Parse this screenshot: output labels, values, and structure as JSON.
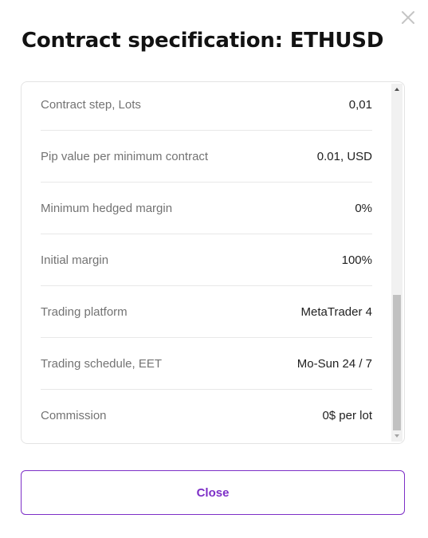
{
  "modal": {
    "title": "Contract specification: ETHUSD",
    "close_icon": "close-icon",
    "close_button_label": "Close",
    "accent_color": "#7d2fc7"
  },
  "spec": {
    "rows": [
      {
        "label": "Contract step, Lots",
        "value": "0,01"
      },
      {
        "label": "Pip value per minimum contract",
        "value": "0.01, USD"
      },
      {
        "label": "Minimum hedged margin",
        "value": "0%"
      },
      {
        "label": "Initial margin",
        "value": "100%"
      },
      {
        "label": "Trading platform",
        "value": "MetaTrader 4"
      },
      {
        "label": "Trading schedule, EET",
        "value": "Mo-Sun 24 / 7"
      },
      {
        "label": "Commission",
        "value": "0$ per lot"
      }
    ]
  }
}
